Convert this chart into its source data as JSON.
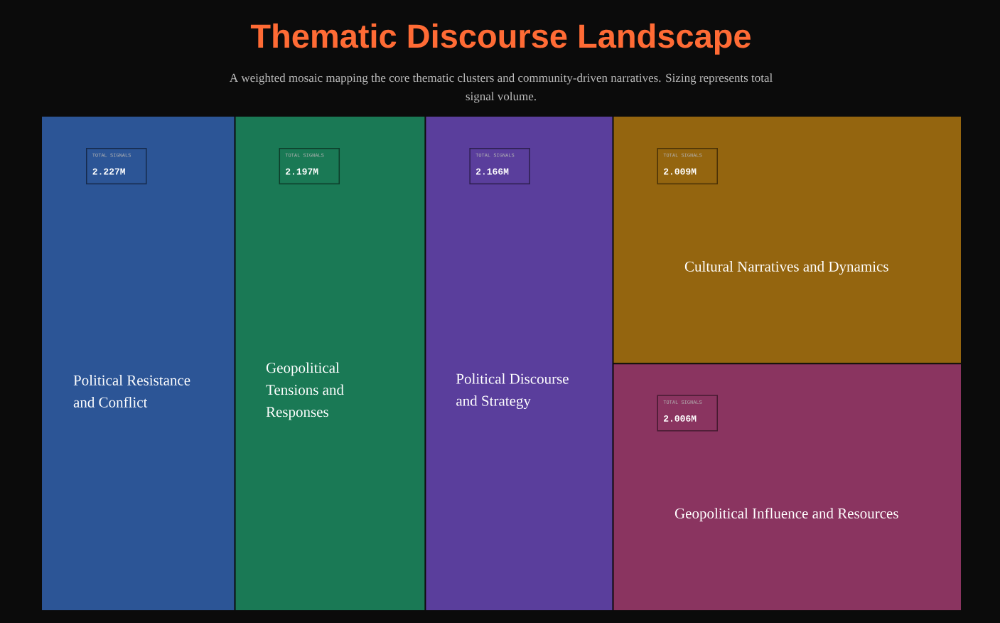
{
  "chart_data": {
    "type": "other",
    "title": "Thematic Discourse Landscape",
    "subtitle": "A weighted mosaic mapping the core thematic clusters and community-driven narratives. Sizing represents total signal volume.",
    "categories": [
      "Political Resistance and Conflict",
      "Geopolitical Tensions and Responses",
      "Political Discourse and Strategy",
      "Cultural Narratives and Dynamics",
      "Geopolitical Influence and Resources"
    ],
    "values": [
      2.227,
      2.197,
      2.166,
      2.009,
      2.006
    ],
    "value_labels": [
      "2.227M",
      "2.197M",
      "2.166M",
      "2.009M",
      "2.006M"
    ],
    "colors": [
      "#2c5596",
      "#1a7955",
      "#5a3e9c",
      "#94650f",
      "#8a3460"
    ],
    "annotations": [
      "TOTAL SIGNALS",
      "TOTAL SIGNALS",
      "TOTAL SIGNALS",
      "TOTAL SIGNALS",
      "TOTAL SIGNALS"
    ]
  }
}
